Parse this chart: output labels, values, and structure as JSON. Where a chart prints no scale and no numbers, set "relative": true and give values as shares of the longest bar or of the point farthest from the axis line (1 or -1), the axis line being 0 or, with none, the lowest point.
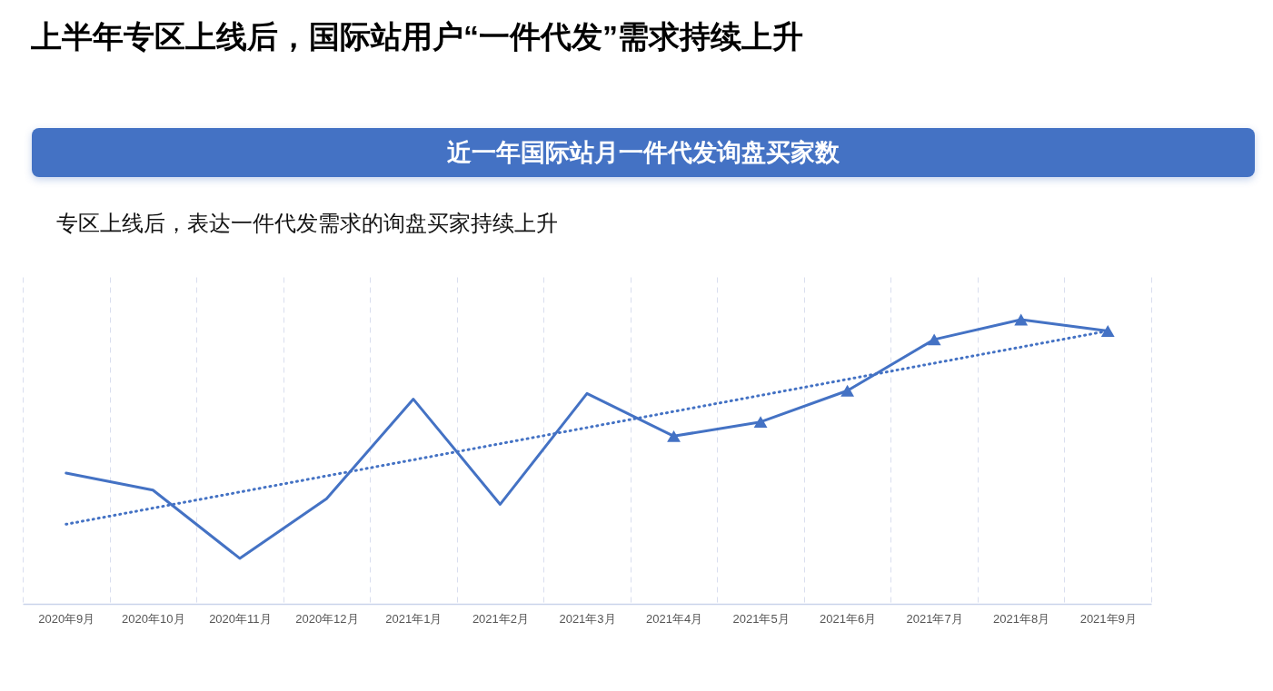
{
  "chart_data": {
    "type": "line",
    "title": "上半年专区上线后，国际站用户“一件代发”需求持续上升",
    "subtitle": "近一年国际站月一件代发询盘买家数",
    "annotations": [
      "专区上线后，表达一件代发需求的询盘买家持续上升"
    ],
    "categories": [
      "2020年9月",
      "2020年10月",
      "2020年11月",
      "2020年12月",
      "2021年1月",
      "2021年2月",
      "2021年3月",
      "2021年4月",
      "2021年5月",
      "2021年6月",
      "2021年7月",
      "2021年8月",
      "2021年9月"
    ],
    "relative": true,
    "grid": "x",
    "series": [
      {
        "color": "#4472c4",
        "marker": "none",
        "line_style": "solid",
        "values": [
          0.46,
          0.4,
          0.16,
          0.37,
          0.72,
          0.35,
          0.74,
          0.59,
          null,
          null,
          null,
          null,
          null
        ]
      },
      {
        "color": "#4472c4",
        "marker": "triangle",
        "line_style": "solid",
        "values": [
          null,
          null,
          null,
          null,
          null,
          null,
          null,
          0.59,
          0.64,
          0.75,
          0.93,
          1,
          0.96
        ]
      },
      {
        "type": "line",
        "color": "#4472c4",
        "line_style": "dotted",
        "x": [
          "2020年9月",
          "2021年9月"
        ],
        "values": [
          0.28,
          0.96
        ]
      }
    ]
  }
}
